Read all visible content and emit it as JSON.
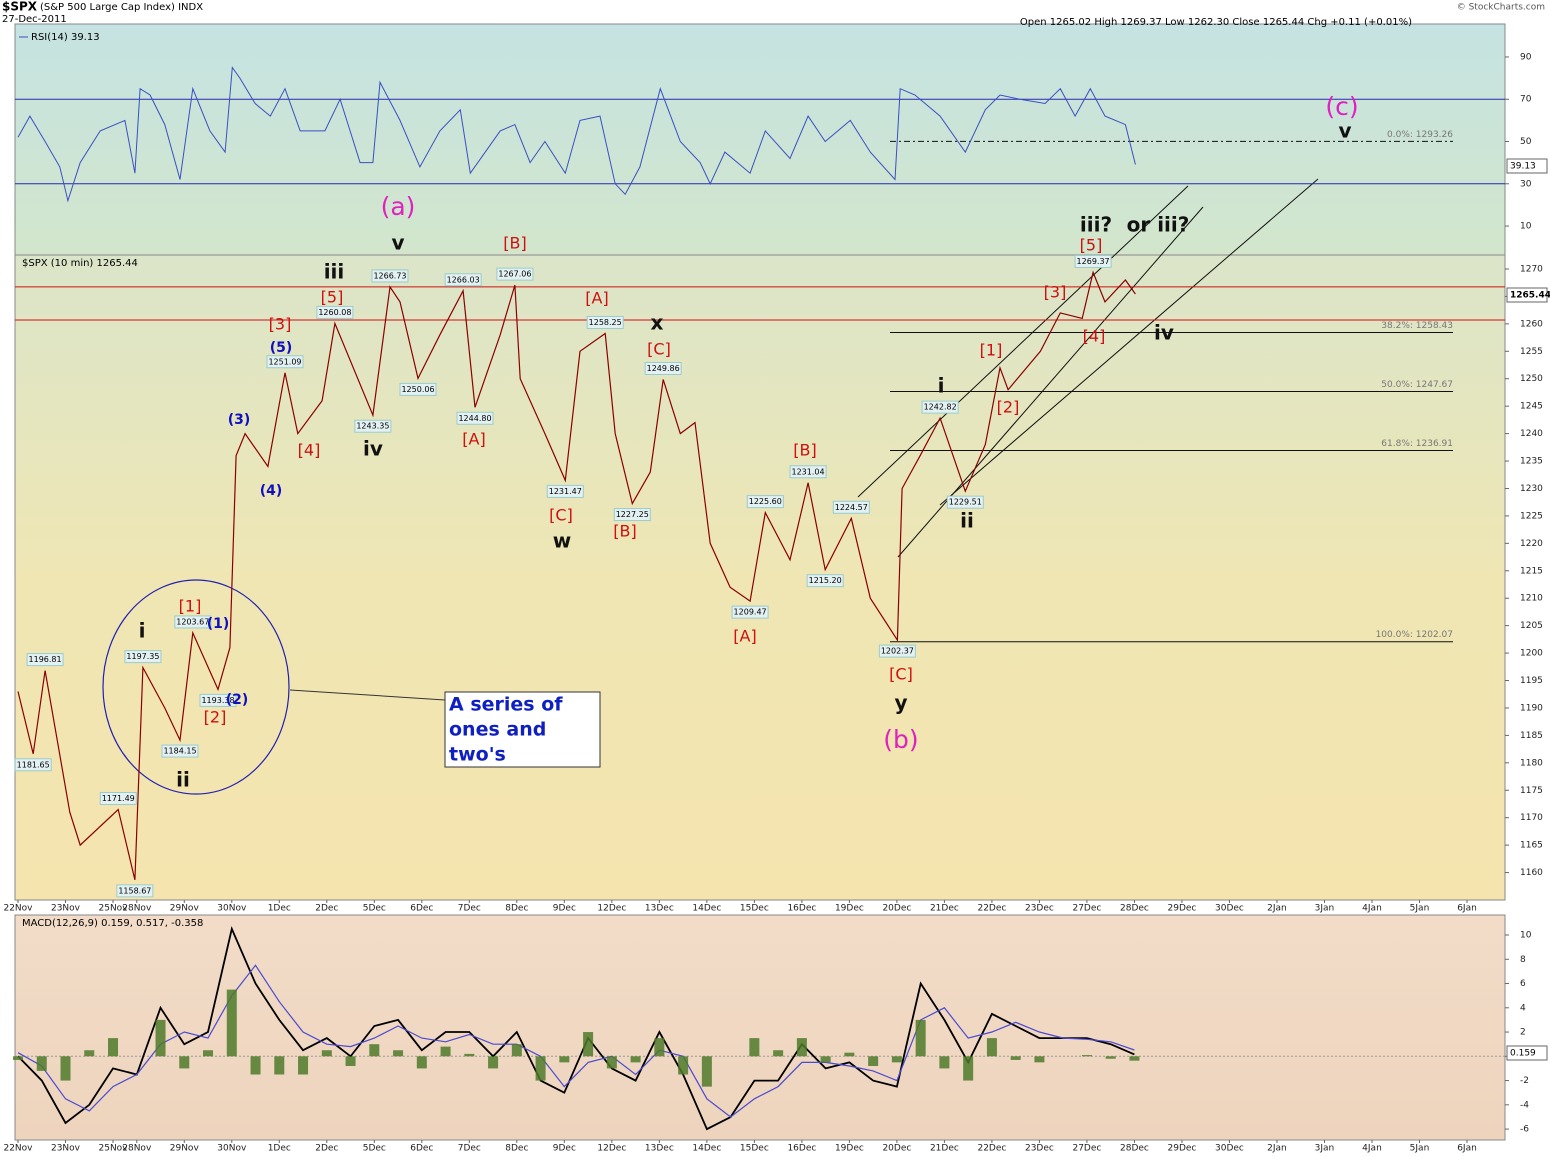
{
  "chart_data": [
    {
      "type": "line",
      "legend": "RSI(14) 39.13",
      "last_label": "39.13",
      "x": [
        0,
        0.25,
        0.57,
        0.88,
        1.05,
        1.31,
        1.73,
        2.25,
        2.46,
        2.57,
        2.78,
        3.09,
        3.41,
        3.68,
        4.04,
        4.36,
        4.51,
        4.67,
        4.99,
        5.31,
        5.62,
        5.94,
        6.46,
        6.78,
        7.2,
        7.47,
        7.62,
        8.04,
        8.46,
        8.88,
        9.31,
        9.52,
        10.15,
        10.46,
        10.78,
        11.09,
        11.52,
        11.83,
        12.25,
        12.57,
        12.78,
        13.09,
        13.52,
        13.94,
        14.36,
        14.57,
        14.88,
        15.41,
        15.73,
        16.25,
        16.63,
        16.99,
        17.52,
        17.94,
        18.46,
        18.57,
        18.88,
        19.41,
        19.94,
        20.36,
        20.67,
        21.09,
        21.62,
        21.94,
        22.25,
        22.57,
        22.88,
        23.31,
        23.52
      ],
      "series": [
        {
          "color": "#3a4fc0",
          "values": [
            52,
            62,
            50,
            38,
            22,
            40,
            55,
            60,
            35,
            75,
            72,
            58,
            32,
            75,
            55,
            45,
            85,
            80,
            68,
            62,
            75,
            55,
            55,
            70,
            40,
            40,
            78,
            60,
            38,
            55,
            65,
            35,
            55,
            58,
            40,
            50,
            35,
            60,
            62,
            30,
            25,
            38,
            75,
            50,
            40,
            30,
            45,
            35,
            55,
            42,
            62,
            50,
            60,
            45,
            32,
            75,
            72,
            62,
            45,
            65,
            72,
            70,
            68,
            75,
            62,
            75,
            62,
            58,
            39.13
          ]
        }
      ],
      "ylim": [
        -3.7,
        105.6
      ],
      "yticks": [
        10,
        30,
        50,
        70,
        90
      ],
      "hlines": [
        70,
        30
      ]
    },
    {
      "type": "line",
      "title": "$SPX",
      "subtitle": "(S&P 500 Large Cap Index) INDX",
      "date": "27-Dec-2011",
      "quote": "Open 1265.02  High 1269.37  Low 1262.30  Close 1265.44  Chg +0.11 (+0.01%)",
      "credit": "© StockCharts.com",
      "legend": "$SPX (10 min) 1265.44",
      "last_label": "1265.44",
      "x": [
        0,
        0.32,
        0.57,
        1.09,
        1.31,
        2.11,
        2.46,
        2.63,
        3.09,
        3.41,
        3.68,
        4.21,
        4.46,
        4.59,
        4.78,
        5.26,
        5.62,
        5.89,
        6.4,
        6.67,
        7.47,
        7.83,
        8.04,
        8.42,
        8.88,
        9.37,
        9.62,
        10.15,
        10.46,
        10.57,
        11.09,
        11.52,
        11.83,
        12.36,
        12.57,
        12.93,
        13.31,
        13.58,
        13.94,
        14.25,
        14.57,
        14.99,
        15.41,
        15.73,
        16.25,
        16.63,
        16.99,
        17.54,
        17.94,
        18.51,
        18.61,
        18.99,
        19.41,
        19.94,
        20.36,
        20.67,
        20.84,
        21.52,
        21.94,
        22.4,
        22.63,
        22.88,
        23.31,
        23.52
      ],
      "values": [
        1193,
        1181.65,
        1196.81,
        1171,
        1165,
        1171.49,
        1158.67,
        1197.35,
        1190,
        1184.15,
        1203.67,
        1193.38,
        1201,
        1236,
        1240,
        1234,
        1251.09,
        1240,
        1246,
        1260.08,
        1243.35,
        1266.73,
        1264,
        1250.06,
        1258,
        1266.03,
        1244.8,
        1258,
        1267.06,
        1250,
        1240,
        1231.47,
        1255,
        1258.25,
        1240,
        1227.25,
        1233,
        1249.86,
        1240,
        1242,
        1220,
        1212,
        1209.47,
        1225.6,
        1217,
        1231.04,
        1215.2,
        1224.57,
        1210,
        1202.37,
        1230,
        1236,
        1242.82,
        1229.51,
        1238,
        1252,
        1248,
        1255,
        1262,
        1261,
        1269.37,
        1264,
        1268,
        1265.44
      ],
      "value_labels": [
        null,
        "1181.65",
        "1196.81",
        null,
        null,
        "1171.49",
        "1158.67",
        "1197.35",
        null,
        "1184.15",
        "1203.67",
        "1193.38",
        null,
        null,
        null,
        null,
        "1251.09",
        null,
        null,
        "1260.08",
        "1243.35",
        "1266.73",
        null,
        "1250.06",
        null,
        "1266.03",
        "1244.80",
        null,
        "1267.06",
        null,
        null,
        "1231.47",
        null,
        "1258.25",
        null,
        "1227.25",
        null,
        "1249.86",
        null,
        null,
        null,
        null,
        "1209.47",
        "1225.60",
        null,
        "1231.04",
        "1215.20",
        "1224.57",
        null,
        "1202.37",
        null,
        null,
        "1242.82",
        "1229.51",
        null,
        null,
        null,
        null,
        null,
        null,
        "1269.37",
        null,
        null,
        null
      ],
      "color": "#8b0000",
      "ylim": [
        1155,
        1272.55
      ],
      "yticks": [
        1160,
        1165,
        1170,
        1175,
        1180,
        1185,
        1190,
        1195,
        1200,
        1205,
        1210,
        1215,
        1220,
        1225,
        1230,
        1235,
        1240,
        1245,
        1250,
        1255,
        1260,
        1265,
        1270
      ],
      "xlim": [
        0,
        31.3
      ],
      "xticks": [
        {
          "value": 0,
          "label": "22Nov"
        },
        {
          "value": 1,
          "label": "23Nov"
        },
        {
          "value": 2,
          "label": "25Nov"
        },
        {
          "value": 2.5,
          "label": "28Nov"
        },
        {
          "value": 3.5,
          "label": "29Nov"
        },
        {
          "value": 4.5,
          "label": "30Nov"
        },
        {
          "value": 5.5,
          "label": "1Dec"
        },
        {
          "value": 6.5,
          "label": "2Dec"
        },
        {
          "value": 7.5,
          "label": "5Dec"
        },
        {
          "value": 8.5,
          "label": "6Dec"
        },
        {
          "value": 9.5,
          "label": "7Dec"
        },
        {
          "value": 10.5,
          "label": "8Dec"
        },
        {
          "value": 11.5,
          "label": "9Dec"
        },
        {
          "value": 12.5,
          "label": "12Dec"
        },
        {
          "value": 13.5,
          "label": "13Dec"
        },
        {
          "value": 14.5,
          "label": "14Dec"
        },
        {
          "value": 15.5,
          "label": "15Dec"
        },
        {
          "value": 16.5,
          "label": "16Dec"
        },
        {
          "value": 17.5,
          "label": "19Dec"
        },
        {
          "value": 18.5,
          "label": "20Dec"
        },
        {
          "value": 19.5,
          "label": "21Dec"
        },
        {
          "value": 20.5,
          "label": "22Dec"
        },
        {
          "value": 21.5,
          "label": "23Dec"
        },
        {
          "value": 22.5,
          "label": "27Dec"
        },
        {
          "value": 23.5,
          "label": "28Dec"
        },
        {
          "value": 24.5,
          "label": "29Dec"
        },
        {
          "value": 25.5,
          "label": "30Dec"
        },
        {
          "value": 26.5,
          "label": "2Jan"
        },
        {
          "value": 27.5,
          "label": "3Jan"
        },
        {
          "value": 28.5,
          "label": "4Jan"
        },
        {
          "value": 29.5,
          "label": "5Jan"
        },
        {
          "value": 30.5,
          "label": "6Jan"
        }
      ],
      "hlines": [
        {
          "value": 1266.73,
          "color": "#d01010"
        },
        {
          "value": 1260.7,
          "color": "#d01010"
        }
      ],
      "fibs": [
        {
          "value": 1293.26,
          "label": "0.0%: 1293.26"
        },
        {
          "value": 1258.43,
          "label": "38.2%: 1258.43"
        },
        {
          "value": 1247.67,
          "label": "50.0%: 1247.67"
        },
        {
          "value": 1236.91,
          "label": "61.8%: 1236.91"
        },
        {
          "value": 1202.07,
          "label": "100.0%: 1202.07"
        }
      ],
      "annotations": [
        {
          "text": "(a)",
          "color": "#e020c0"
        },
        {
          "text": "(c)",
          "color": "#e020c0"
        },
        {
          "text": "v",
          "color": "#111111"
        },
        {
          "text": "v",
          "color": "#111111"
        },
        {
          "text": "[B]",
          "color": "#d01010"
        },
        {
          "text": "iii",
          "color": "#111111"
        },
        {
          "text": "[5]",
          "color": "#d01010"
        },
        {
          "text": "[3]",
          "color": "#d01010"
        },
        {
          "text": "(5)",
          "color": "#1010c0"
        },
        {
          "text": "(3)",
          "color": "#1010c0"
        },
        {
          "text": "(4)",
          "color": "#1010c0"
        },
        {
          "text": "[4]",
          "color": "#d01010"
        },
        {
          "text": "iv",
          "color": "#111111"
        },
        {
          "text": "[A]",
          "color": "#d01010"
        },
        {
          "text": "[A]",
          "color": "#d01010"
        },
        {
          "text": "x",
          "color": "#111111"
        },
        {
          "text": "[C]",
          "color": "#d01010"
        },
        {
          "text": "[C]",
          "color": "#d01010"
        },
        {
          "text": "w",
          "color": "#111111"
        },
        {
          "text": "[B]",
          "color": "#d01010"
        },
        {
          "text": "[A]",
          "color": "#d01010"
        },
        {
          "text": "[B]",
          "color": "#d01010"
        },
        {
          "text": "[C]",
          "color": "#d01010"
        },
        {
          "text": "y",
          "color": "#111111"
        },
        {
          "text": "(b)",
          "color": "#e020c0"
        },
        {
          "text": "i",
          "color": "#111111"
        },
        {
          "text": "ii",
          "color": "#111111"
        },
        {
          "text": "[1]",
          "color": "#d01010"
        },
        {
          "text": "[2]",
          "color": "#d01010"
        },
        {
          "text": "[3]",
          "color": "#d01010"
        },
        {
          "text": "[5]",
          "color": "#d01010"
        },
        {
          "text": "[4]",
          "color": "#d01010"
        },
        {
          "text": "iii?",
          "color": "#111111"
        },
        {
          "text": "or iii?",
          "color": "#111111"
        },
        {
          "text": "iv",
          "color": "#111111"
        },
        {
          "text": "i",
          "color": "#111111"
        },
        {
          "text": "[1]",
          "color": "#d01010"
        },
        {
          "text": "(1)",
          "color": "#1010c0"
        },
        {
          "text": "(2)",
          "color": "#1010c0"
        },
        {
          "text": "[2]",
          "color": "#d01010"
        },
        {
          "text": "ii",
          "color": "#111111"
        }
      ],
      "callout": [
        "A series of",
        "ones and",
        "two's"
      ]
    },
    {
      "type": "macd",
      "legend": "MACD(12,26,9) 0.159, 0.517, -0.358",
      "last_label": "0.159",
      "x": [
        0,
        0.5,
        1,
        1.5,
        2,
        2.5,
        3,
        3.5,
        4,
        4.5,
        5,
        5.5,
        6,
        6.5,
        7,
        7.5,
        8,
        8.5,
        9,
        9.5,
        10,
        10.5,
        11,
        11.5,
        12,
        12.5,
        13,
        13.5,
        14,
        14.5,
        15,
        15.5,
        16,
        16.5,
        17,
        17.5,
        18,
        18.5,
        19,
        19.5,
        20,
        20.5,
        21,
        21.5,
        22,
        22.5,
        23,
        23.5
      ],
      "series": [
        {
          "color": "#000000",
          "values": [
            0,
            -2,
            -5.5,
            -4,
            -1,
            -1.5,
            4,
            1,
            2,
            10.5,
            6,
            3,
            0.5,
            1.5,
            0,
            2.5,
            3,
            0.5,
            2,
            2,
            0,
            2,
            -2,
            -3,
            1.5,
            -1,
            -2,
            2,
            -1.5,
            -6,
            -5,
            -2,
            -2,
            1,
            -1,
            -0.5,
            -2,
            -2.5,
            6,
            3,
            -0.5,
            3.5,
            2.5,
            1.5,
            1.5,
            1.5,
            1,
            0.159
          ]
        },
        {
          "color": "#4a4ad0",
          "values": [
            0.3,
            -0.8,
            -3.5,
            -4.5,
            -2.5,
            -1.5,
            1,
            2,
            1.5,
            5,
            7.5,
            4.5,
            2,
            1,
            0.8,
            1.5,
            2.5,
            1.5,
            1.2,
            1.8,
            1,
            1,
            0,
            -2.5,
            -0.5,
            0,
            -1.5,
            0.5,
            0,
            -3.5,
            -5,
            -3.5,
            -2.5,
            -0.5,
            -0.5,
            -0.8,
            -1.2,
            -2,
            3,
            4,
            1.5,
            2,
            2.8,
            2,
            1.5,
            1.4,
            1.2,
            0.517
          ]
        },
        {
          "color": "#4d7a2a",
          "kind": "bar",
          "values": [
            -0.3,
            -1.2,
            -2,
            0.5,
            1.5,
            0,
            3,
            -1,
            0.5,
            5.5,
            -1.5,
            -1.5,
            -1.5,
            0.5,
            -0.8,
            1,
            0.5,
            -1,
            0.8,
            0.2,
            -1,
            1,
            -2,
            -0.5,
            2,
            -1,
            -0.5,
            1.5,
            -1.5,
            -2.5,
            0,
            1.5,
            0.5,
            1.5,
            -0.5,
            0.3,
            -0.8,
            -0.5,
            3,
            -1,
            -2,
            1.5,
            -0.3,
            -0.5,
            0,
            0.1,
            -0.2,
            -0.358
          ]
        }
      ],
      "ylim": [
        -6.9,
        11.65
      ],
      "yticks": [
        -6,
        -4,
        -2,
        0,
        2,
        4,
        6,
        8,
        10
      ],
      "hlines": [
        0
      ]
    }
  ]
}
